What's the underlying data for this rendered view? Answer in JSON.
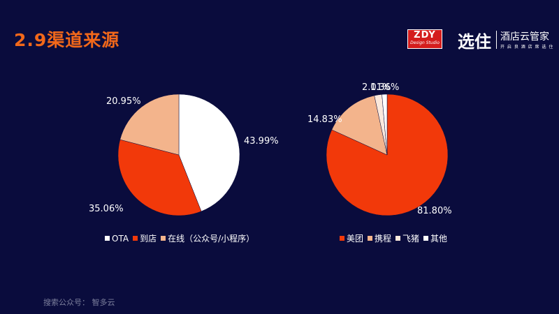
{
  "header": {
    "title": "2.9渠道来源",
    "logo_zdy_main": "ZDY",
    "logo_zdy_sub": "Design Studio",
    "logo_xz_mark": "选住",
    "logo_xz_name": "酒店云管家",
    "logo_xz_slogan": "开 启 良 酒 店 席 选 住"
  },
  "footer": {
    "text": "搜索公众号：  智多云"
  },
  "colors": {
    "white": "#ffffff",
    "orange_red": "#f2390a",
    "peach": "#f3b48c",
    "cream": "#fbe9dc"
  },
  "chart_data": [
    {
      "type": "pie",
      "series": [
        {
          "name": "OTA",
          "value": 43.99,
          "label": "43.99%",
          "color": "#ffffff"
        },
        {
          "name": "到店",
          "value": 35.06,
          "label": "35.06%",
          "color": "#f2390a"
        },
        {
          "name": "在线（公众号/小程序）",
          "value": 20.95,
          "label": "20.95%",
          "color": "#f3b48c"
        }
      ],
      "legend_position": "bottom"
    },
    {
      "type": "pie",
      "series": [
        {
          "name": "美团",
          "value": 81.8,
          "label": "81.80%",
          "color": "#f2390a"
        },
        {
          "name": "携程",
          "value": 14.83,
          "label": "14.83%",
          "color": "#f3b48c"
        },
        {
          "name": "飞猪",
          "value": 2.01,
          "label": "2.01%",
          "color": "#fbe9dc"
        },
        {
          "name": "其他",
          "value": 1.36,
          "label": "1.36%",
          "color": "#ffffff"
        }
      ],
      "legend_position": "bottom"
    }
  ]
}
